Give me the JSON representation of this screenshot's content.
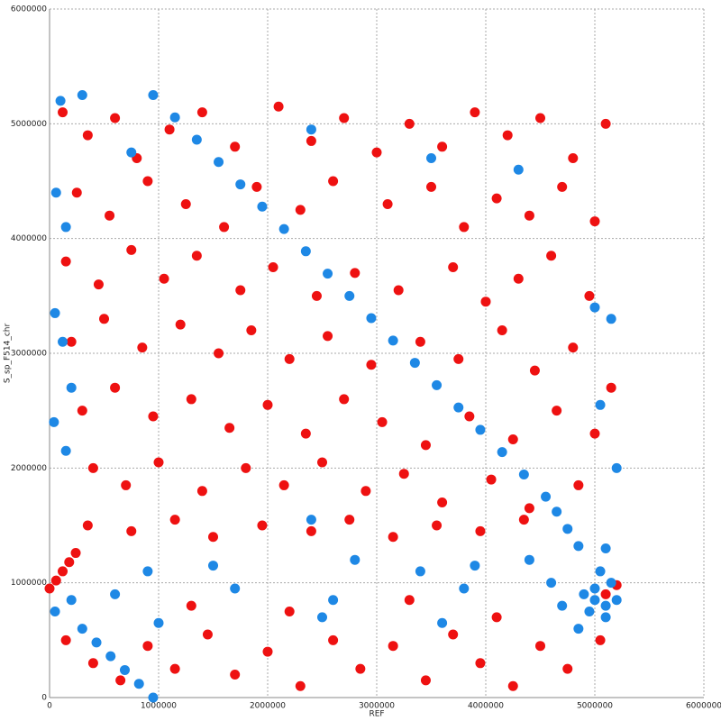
{
  "chart_data": {
    "type": "scatter",
    "x_label": "REF",
    "y_label": "S_sp_F514_chr",
    "xlim": [
      0,
      6000000
    ],
    "ylim": [
      0,
      6000000
    ],
    "xticks": [
      0,
      1000000,
      2000000,
      3000000,
      4000000,
      5000000,
      6000000
    ],
    "yticks": [
      0,
      1000000,
      2000000,
      3000000,
      4000000,
      5000000,
      6000000
    ],
    "grid": true,
    "series": [
      {
        "color": "#ee1111",
        "x": [
          120000,
          350000,
          600000,
          800000,
          1100000,
          1400000,
          1700000,
          2100000,
          2400000,
          2700000,
          3000000,
          3300000,
          3600000,
          3900000,
          4200000,
          4500000,
          4800000,
          5100000,
          250000,
          550000,
          900000,
          1250000,
          1600000,
          1900000,
          2300000,
          2600000,
          3100000,
          3500000,
          3800000,
          4100000,
          4400000,
          4700000,
          5000000,
          150000,
          450000,
          750000,
          1050000,
          1350000,
          1750000,
          2050000,
          2450000,
          2800000,
          3200000,
          3700000,
          4000000,
          4300000,
          4600000,
          4950000,
          200000,
          500000,
          850000,
          1200000,
          1550000,
          1850000,
          2200000,
          2550000,
          2950000,
          3400000,
          3750000,
          4150000,
          4450000,
          4800000,
          5150000,
          300000,
          600000,
          950000,
          1300000,
          1650000,
          2000000,
          2350000,
          2700000,
          3050000,
          3450000,
          3850000,
          4250000,
          4650000,
          5000000,
          400000,
          700000,
          1000000,
          1400000,
          1800000,
          2150000,
          2500000,
          2900000,
          3250000,
          3600000,
          4050000,
          4400000,
          4850000,
          350000,
          750000,
          1150000,
          1500000,
          1950000,
          2400000,
          2750000,
          3150000,
          3550000,
          3950000,
          4350000,
          150000,
          400000,
          650000,
          900000,
          1150000,
          1450000,
          1700000,
          2000000,
          2300000,
          2600000,
          2850000,
          3150000,
          3450000,
          3700000,
          3950000,
          4250000,
          4500000,
          4750000,
          5050000,
          1300000,
          2200000,
          3300000,
          4100000,
          0,
          60000,
          120000,
          180000,
          240000,
          5100000,
          5200000
        ],
        "values": [
          5100000,
          4900000,
          5050000,
          4700000,
          4950000,
          5100000,
          4800000,
          5150000,
          4850000,
          5050000,
          4750000,
          5000000,
          4800000,
          5100000,
          4900000,
          5050000,
          4700000,
          5000000,
          4400000,
          4200000,
          4500000,
          4300000,
          4100000,
          4450000,
          4250000,
          4500000,
          4300000,
          4450000,
          4100000,
          4350000,
          4200000,
          4450000,
          4150000,
          3800000,
          3600000,
          3900000,
          3650000,
          3850000,
          3550000,
          3750000,
          3500000,
          3700000,
          3550000,
          3750000,
          3450000,
          3650000,
          3850000,
          3500000,
          3100000,
          3300000,
          3050000,
          3250000,
          3000000,
          3200000,
          2950000,
          3150000,
          2900000,
          3100000,
          2950000,
          3200000,
          2850000,
          3050000,
          2700000,
          2500000,
          2700000,
          2450000,
          2600000,
          2350000,
          2550000,
          2300000,
          2600000,
          2400000,
          2200000,
          2450000,
          2250000,
          2500000,
          2300000,
          2000000,
          1850000,
          2050000,
          1800000,
          2000000,
          1850000,
          2050000,
          1800000,
          1950000,
          1700000,
          1900000,
          1650000,
          1850000,
          1500000,
          1450000,
          1550000,
          1400000,
          1500000,
          1450000,
          1550000,
          1400000,
          1500000,
          1450000,
          1550000,
          500000,
          300000,
          150000,
          450000,
          250000,
          550000,
          200000,
          400000,
          100000,
          500000,
          250000,
          450000,
          150000,
          550000,
          300000,
          100000,
          450000,
          250000,
          500000,
          800000,
          750000,
          850000,
          700000,
          950000,
          1020000,
          1100000,
          1180000,
          1260000,
          900000,
          980000
        ]
      },
      {
        "color": "#1e88e5",
        "x": [
          100000,
          300000,
          750000,
          60000,
          150000,
          2400000,
          3500000,
          4300000,
          50000,
          120000,
          5000000,
          5150000,
          200000,
          40000,
          5050000,
          150000,
          5200000,
          2400000,
          3900000,
          900000,
          1500000,
          2800000,
          3400000,
          4400000,
          600000,
          1700000,
          2600000,
          3800000,
          4600000,
          50000,
          200000,
          1000000,
          2500000,
          3600000,
          4700000,
          4900000,
          5000000,
          5100000,
          5000000,
          5150000,
          4950000,
          5100000,
          5200000,
          5050000,
          5100000,
          4850000,
          950000,
          1150000,
          1350000,
          1550000,
          1750000,
          1950000,
          2150000,
          2350000,
          2550000,
          2750000,
          2950000,
          3150000,
          3350000,
          3550000,
          3750000,
          3950000,
          4150000,
          4350000,
          4550000,
          4650000,
          4750000,
          4850000,
          300000,
          430000,
          560000,
          690000,
          820000,
          950000
        ],
        "values": [
          5200000,
          5250000,
          4750000,
          4400000,
          4100000,
          4950000,
          4700000,
          4600000,
          3350000,
          3100000,
          3400000,
          3300000,
          2700000,
          2400000,
          2550000,
          2150000,
          2000000,
          1550000,
          1150000,
          1100000,
          1150000,
          1200000,
          1100000,
          1200000,
          900000,
          950000,
          850000,
          950000,
          1000000,
          750000,
          850000,
          650000,
          700000,
          650000,
          800000,
          900000,
          850000,
          800000,
          950000,
          1000000,
          750000,
          700000,
          850000,
          1100000,
          1300000,
          600000,
          5250000,
          5056000,
          4861000,
          4667000,
          4472000,
          4278000,
          4083000,
          3889000,
          3694000,
          3500000,
          3306000,
          3111000,
          2917000,
          2722000,
          2528000,
          2333000,
          2139000,
          1944000,
          1750000,
          1620000,
          1470000,
          1320000,
          600000,
          480000,
          360000,
          240000,
          120000,
          0
        ]
      }
    ]
  }
}
